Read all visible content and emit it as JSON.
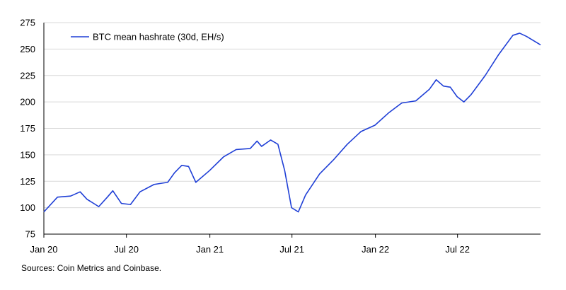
{
  "chart_data": {
    "type": "line",
    "title": "",
    "xlabel": "",
    "ylabel": "",
    "ylim": [
      75,
      275
    ],
    "y_ticks": [
      75,
      100,
      125,
      150,
      175,
      200,
      225,
      250,
      275
    ],
    "x_ticks": [
      {
        "date": "2020-01-01",
        "label": "Jan 20"
      },
      {
        "date": "2020-07-01",
        "label": "Jul 20"
      },
      {
        "date": "2021-01-01",
        "label": "Jan 21"
      },
      {
        "date": "2021-07-01",
        "label": "Jul 21"
      },
      {
        "date": "2022-01-01",
        "label": "Jan 22"
      },
      {
        "date": "2022-07-01",
        "label": "Jul 22"
      }
    ],
    "xlim": [
      "2020-01-01",
      "2022-12-31"
    ],
    "grid": "horizontal",
    "legend_position": "top-left",
    "line_color": "#1f3fd6",
    "series": [
      {
        "name": "BTC mean hashrate (30d, EH/s)",
        "x": [
          "2020-01-01",
          "2020-01-31",
          "2020-02-29",
          "2020-03-21",
          "2020-04-05",
          "2020-05-01",
          "2020-05-20",
          "2020-06-01",
          "2020-06-20",
          "2020-07-10",
          "2020-07-31",
          "2020-08-31",
          "2020-09-30",
          "2020-10-15",
          "2020-10-31",
          "2020-11-15",
          "2020-12-01",
          "2020-12-31",
          "2021-01-31",
          "2021-02-28",
          "2021-03-31",
          "2021-04-15",
          "2021-04-25",
          "2021-05-15",
          "2021-05-31",
          "2021-06-15",
          "2021-06-30",
          "2021-07-15",
          "2021-07-31",
          "2021-08-31",
          "2021-09-30",
          "2021-10-31",
          "2021-11-30",
          "2021-12-31",
          "2022-01-31",
          "2022-02-28",
          "2022-03-31",
          "2022-04-30",
          "2022-05-15",
          "2022-05-31",
          "2022-06-15",
          "2022-06-30",
          "2022-07-15",
          "2022-07-31",
          "2022-08-31",
          "2022-09-30",
          "2022-10-31",
          "2022-11-15",
          "2022-11-30",
          "2022-12-31"
        ],
        "values": [
          96,
          110,
          111,
          115,
          108,
          101,
          110,
          116,
          104,
          103,
          115,
          122,
          124,
          133,
          140,
          139,
          124,
          135,
          148,
          155,
          156,
          163,
          158,
          164,
          160,
          135,
          100,
          96,
          112,
          132,
          145,
          160,
          172,
          178,
          190,
          199,
          201,
          212,
          221,
          215,
          214,
          205,
          200,
          207,
          225,
          245,
          263,
          265,
          262,
          254
        ]
      }
    ]
  },
  "source_note": "Sources: Coin Metrics and Coinbase."
}
